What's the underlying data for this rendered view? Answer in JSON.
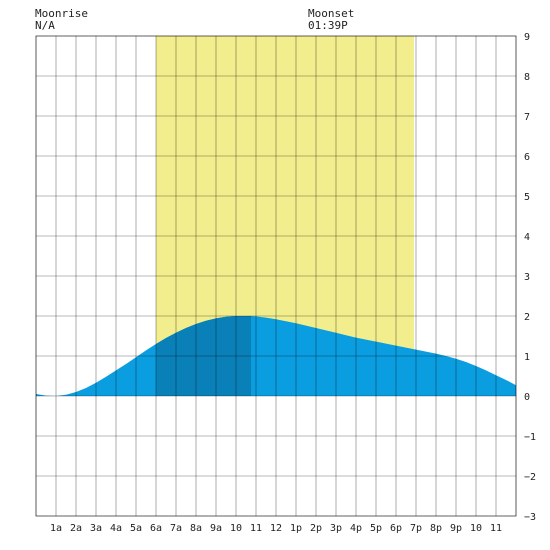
{
  "header": {
    "moonrise_label": "Moonrise",
    "moonrise_value": "N/A",
    "moonset_label": "Moonset",
    "moonset_value": "01:39P"
  },
  "chart_data": {
    "type": "area",
    "title": "",
    "xlabel": "",
    "ylabel": "",
    "xlim": [
      0,
      24
    ],
    "ylim": [
      -3,
      9
    ],
    "grid": true,
    "x_tick_labels": [
      "1a",
      "2a",
      "3a",
      "4a",
      "5a",
      "6a",
      "7a",
      "8a",
      "9a",
      "10",
      "11",
      "12",
      "1p",
      "2p",
      "3p",
      "4p",
      "5p",
      "6p",
      "7p",
      "8p",
      "9p",
      "10",
      "11"
    ],
    "y_ticks": [
      "9",
      "8",
      "7",
      "6",
      "5",
      "4",
      "3",
      "2",
      "1",
      "0",
      "−1",
      "−2",
      "−3"
    ],
    "daylight_hours": [
      6.0,
      18.9
    ],
    "tide_peak_hour": 10.75,
    "series": [
      {
        "x": [
          0,
          0.5,
          1,
          1.5,
          2,
          2.5,
          3,
          3.5,
          4,
          4.5,
          5,
          5.5,
          6,
          6.5,
          7,
          7.5,
          8,
          8.5,
          9,
          9.5,
          10,
          10.5,
          10.75,
          11,
          11.5,
          12,
          12.5,
          13,
          13.5,
          14,
          14.5,
          15,
          15.5,
          16,
          16.5,
          17,
          17.5,
          18,
          18.5,
          19,
          19.5,
          20,
          20.5,
          21,
          21.5,
          22,
          22.5,
          23,
          23.5,
          24
        ],
        "y": [
          0.05,
          0.01,
          0.0,
          0.03,
          0.1,
          0.2,
          0.33,
          0.48,
          0.64,
          0.8,
          0.97,
          1.14,
          1.3,
          1.45,
          1.58,
          1.7,
          1.8,
          1.88,
          1.94,
          1.98,
          2.0,
          2.0,
          2.0,
          1.99,
          1.96,
          1.92,
          1.87,
          1.82,
          1.76,
          1.7,
          1.64,
          1.58,
          1.52,
          1.46,
          1.41,
          1.36,
          1.31,
          1.26,
          1.21,
          1.16,
          1.11,
          1.06,
          1.0,
          0.93,
          0.85,
          0.75,
          0.64,
          0.52,
          0.4,
          0.27
        ]
      }
    ],
    "colors": {
      "daylight": "#f2ee8e",
      "tide": "#0a9ee0",
      "tide_rising": "#0a80b8",
      "grid": "#000000",
      "background": "#ffffff"
    }
  }
}
